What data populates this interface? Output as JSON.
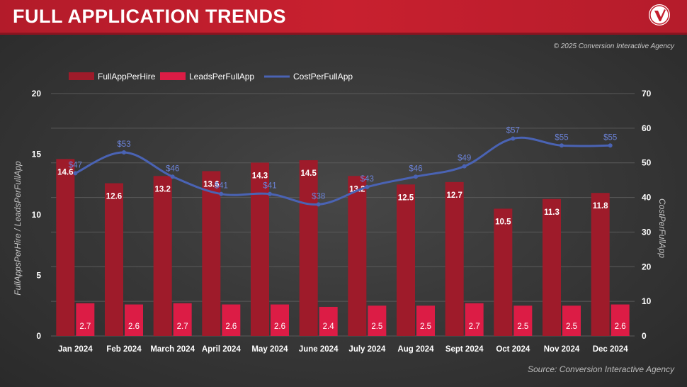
{
  "header": {
    "title": "FULL APPLICATION TRENDS"
  },
  "copyright": "© 2025 Conversion Interactive Agency",
  "source": "Source: Conversion Interactive Agency",
  "colors": {
    "header_red": "#c41e2e",
    "full_app_per_hire": "#9e1b2a",
    "leads_per_full_app": "#dc1c45",
    "cost_per_full_app": "#4a63b4"
  },
  "chart_data": {
    "type": "bar",
    "title": "",
    "categories": [
      "Jan 2024",
      "Feb 2024",
      "March 2024",
      "April 2024",
      "May 2024",
      "June 2024",
      "July 2024",
      "Aug 2024",
      "Sept 2024",
      "Oct 2024",
      "Nov 2024",
      "Dec 2024"
    ],
    "series": [
      {
        "name": "FullAppPerHire",
        "type": "bar",
        "axis": "left",
        "values": [
          14.6,
          12.6,
          13.2,
          13.6,
          14.3,
          14.5,
          13.2,
          12.5,
          12.7,
          10.5,
          11.3,
          11.8
        ],
        "labels": [
          "14.6",
          "12.6",
          "13.2",
          "13.6",
          "14.3",
          "14.5",
          "13.2",
          "12.5",
          "12.7",
          "10.5",
          "11.3",
          "11.8"
        ]
      },
      {
        "name": "LeadsPerFullApp",
        "type": "bar",
        "axis": "left",
        "values": [
          2.7,
          2.6,
          2.7,
          2.6,
          2.6,
          2.4,
          2.5,
          2.5,
          2.7,
          2.5,
          2.5,
          2.6
        ],
        "labels": [
          "2.7",
          "2.6",
          "2.7",
          "2.6",
          "2.6",
          "2.4",
          "2.5",
          "2.5",
          "2.7",
          "2.5",
          "2.5",
          "2.6"
        ]
      },
      {
        "name": "CostPerFullApp",
        "type": "line",
        "axis": "right",
        "values": [
          47,
          53,
          46,
          41,
          41,
          38,
          43,
          46,
          49,
          57,
          55,
          55
        ],
        "labels": [
          "$47",
          "$53",
          "$46",
          "$41",
          "$41",
          "$38",
          "$43",
          "$46",
          "$49",
          "$57",
          "$55",
          "$55"
        ]
      }
    ],
    "y_left": {
      "label": "FullAppsPerHire / LeadsPerFullApp",
      "range": [
        0,
        20
      ],
      "ticks": [
        "0",
        "5",
        "10",
        "15",
        "20"
      ]
    },
    "y_right": {
      "label": "CostPerFullApp",
      "range": [
        0,
        70
      ],
      "ticks": [
        "0",
        "10",
        "20",
        "30",
        "40",
        "50",
        "60",
        "70"
      ]
    },
    "grid": true,
    "legend": "top-left"
  }
}
